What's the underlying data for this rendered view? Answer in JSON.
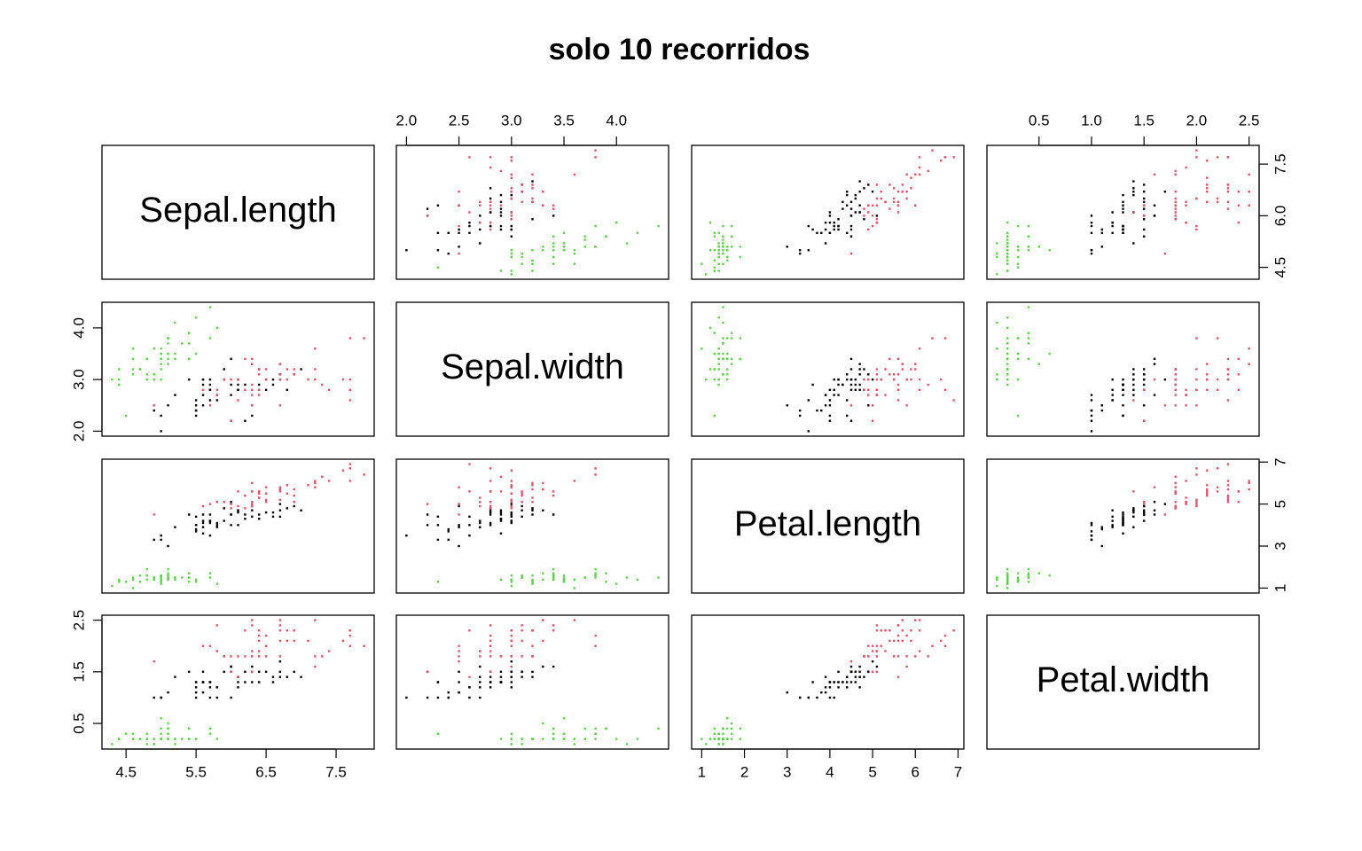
{
  "chart_data": {
    "type": "scatter_matrix",
    "title": "solo 10 recorridos",
    "variables": [
      "Sepal.length",
      "Sepal.width",
      "Petal.length",
      "Petal.width"
    ],
    "lims": [
      [
        4.156,
        8.044
      ],
      [
        1.904,
        4.496
      ],
      [
        0.764,
        7.136
      ],
      [
        0.004,
        2.596
      ]
    ],
    "axes": [
      {
        "side": "top",
        "variable": 1,
        "ticks": [
          {
            "value": 2,
            "label": "2.0"
          },
          2.5,
          {
            "value": 3,
            "label": "3.0"
          },
          3.5,
          {
            "value": 4,
            "label": "4.0"
          }
        ]
      },
      {
        "side": "top",
        "variable": 3,
        "ticks": [
          0.5,
          {
            "value": 1,
            "label": "1.0"
          },
          1.5,
          {
            "value": 2,
            "label": "2.0"
          },
          2.5
        ]
      },
      {
        "side": "right",
        "variable": 0,
        "ticks": [
          4.5,
          {
            "value": 6,
            "label": "6.0"
          },
          7.5
        ]
      },
      {
        "side": "right",
        "variable": 2,
        "ticks": [
          1,
          3,
          5,
          7
        ]
      },
      {
        "side": "left",
        "variable": 1,
        "ticks": [
          {
            "value": 2,
            "label": "2.0"
          },
          {
            "value": 3,
            "label": "3.0"
          },
          {
            "value": 4,
            "label": "4.0"
          }
        ]
      },
      {
        "side": "left",
        "variable": 3,
        "ticks": [
          0.5,
          1.5,
          2.5
        ]
      },
      {
        "side": "bottom",
        "variable": 0,
        "ticks": [
          4.5,
          5.5,
          6.5,
          7.5
        ]
      },
      {
        "side": "bottom",
        "variable": 2,
        "ticks": [
          1,
          2,
          3,
          4,
          5,
          6,
          7
        ]
      }
    ],
    "series": [
      {
        "color": "#000000",
        "columns": [
          [
            7.0,
            6.4,
            6.9,
            5.5,
            6.5,
            5.7,
            6.3,
            4.9,
            6.6,
            5.2,
            5.0,
            5.9,
            6.0,
            6.1,
            5.6,
            6.7,
            5.6,
            5.8,
            6.2,
            5.6,
            5.9,
            6.1,
            6.3,
            6.1,
            6.4,
            6.6,
            6.8,
            6.7,
            6.0,
            5.7,
            5.5,
            5.5,
            5.8,
            6.0,
            5.4,
            6.0,
            6.7,
            6.3,
            5.6,
            5.5,
            5.5,
            6.1,
            5.8,
            5.0,
            5.6,
            5.7,
            5.7,
            6.2,
            5.1,
            5.7
          ],
          [
            3.2,
            3.2,
            3.1,
            2.3,
            2.8,
            2.8,
            3.3,
            2.4,
            2.9,
            2.7,
            2.0,
            3.0,
            2.2,
            2.9,
            2.9,
            3.1,
            3.0,
            2.7,
            2.2,
            2.5,
            3.2,
            2.8,
            2.5,
            2.8,
            2.9,
            3.0,
            2.8,
            3.0,
            2.9,
            2.6,
            2.4,
            2.4,
            2.7,
            2.7,
            3.0,
            3.4,
            3.1,
            2.3,
            3.0,
            2.5,
            2.6,
            3.0,
            2.6,
            2.3,
            2.7,
            3.0,
            2.9,
            2.9,
            2.5,
            2.8
          ],
          [
            4.7,
            4.5,
            4.9,
            4.0,
            4.6,
            4.5,
            4.7,
            3.3,
            4.6,
            3.9,
            3.5,
            4.2,
            4.0,
            4.7,
            3.6,
            4.4,
            4.5,
            4.1,
            4.5,
            3.9,
            4.8,
            4.0,
            4.9,
            4.7,
            4.3,
            4.4,
            4.8,
            5.0,
            4.5,
            3.5,
            3.8,
            3.7,
            3.9,
            5.1,
            4.5,
            4.5,
            4.7,
            4.4,
            4.1,
            4.0,
            4.4,
            4.6,
            4.0,
            3.3,
            4.2,
            4.2,
            4.2,
            4.3,
            3.0,
            4.1
          ],
          [
            1.4,
            1.5,
            1.5,
            1.3,
            1.5,
            1.3,
            1.6,
            1.0,
            1.3,
            1.4,
            1.0,
            1.5,
            1.0,
            1.4,
            1.3,
            1.4,
            1.5,
            1.0,
            1.5,
            1.1,
            1.8,
            1.3,
            1.5,
            1.2,
            1.3,
            1.4,
            1.4,
            1.7,
            1.5,
            1.0,
            1.1,
            1.0,
            1.2,
            1.6,
            1.5,
            1.6,
            1.5,
            1.3,
            1.3,
            1.3,
            1.2,
            1.4,
            1.2,
            1.0,
            1.3,
            1.2,
            1.3,
            1.3,
            1.1,
            1.3
          ]
        ]
      },
      {
        "color": "#DF536B",
        "columns": [
          [
            6.3,
            5.8,
            7.1,
            6.3,
            6.5,
            7.6,
            4.9,
            7.3,
            6.7,
            7.2,
            6.5,
            6.4,
            6.8,
            5.7,
            5.8,
            6.4,
            6.5,
            7.7,
            7.7,
            6.0,
            6.9,
            5.6,
            7.7,
            6.3,
            6.7,
            7.2,
            6.2,
            6.1,
            6.4,
            7.2,
            7.4,
            7.9,
            6.4,
            6.3,
            6.1,
            7.7,
            6.3,
            6.4,
            6.0,
            6.9,
            6.7,
            6.9,
            5.8,
            6.8,
            6.7,
            6.7,
            6.3,
            6.5,
            6.2,
            5.9
          ],
          [
            3.3,
            2.7,
            3.0,
            2.9,
            3.0,
            3.0,
            2.5,
            2.9,
            2.5,
            3.6,
            3.2,
            2.7,
            3.0,
            2.5,
            2.8,
            3.2,
            3.0,
            3.8,
            2.6,
            2.2,
            3.2,
            2.8,
            2.8,
            2.7,
            3.3,
            3.2,
            2.8,
            3.0,
            2.8,
            3.0,
            2.8,
            3.8,
            2.8,
            2.8,
            2.6,
            3.0,
            3.4,
            3.1,
            3.0,
            3.1,
            3.1,
            3.1,
            2.7,
            3.2,
            3.3,
            3.0,
            2.5,
            3.0,
            3.4,
            3.0
          ],
          [
            6.0,
            5.1,
            5.9,
            5.6,
            5.8,
            6.6,
            4.5,
            6.3,
            5.8,
            6.1,
            5.1,
            5.3,
            5.5,
            5.0,
            5.1,
            5.3,
            5.5,
            6.7,
            6.9,
            5.0,
            5.7,
            4.9,
            6.7,
            4.9,
            5.7,
            6.0,
            4.8,
            4.9,
            5.6,
            5.8,
            6.1,
            6.4,
            5.6,
            5.1,
            5.6,
            6.1,
            5.6,
            5.5,
            4.8,
            5.4,
            5.6,
            5.1,
            5.1,
            5.9,
            5.7,
            5.2,
            5.0,
            5.2,
            5.4,
            5.1
          ],
          [
            2.5,
            1.9,
            2.1,
            1.8,
            2.2,
            2.1,
            1.7,
            1.8,
            1.8,
            2.5,
            2.0,
            1.9,
            2.1,
            2.0,
            2.4,
            2.3,
            1.8,
            2.2,
            2.3,
            1.5,
            2.3,
            2.0,
            2.0,
            1.8,
            2.1,
            1.8,
            1.8,
            1.8,
            2.1,
            1.6,
            1.9,
            2.0,
            2.2,
            1.5,
            1.4,
            2.3,
            2.4,
            1.8,
            1.8,
            2.1,
            2.4,
            2.3,
            1.9,
            2.3,
            2.5,
            2.3,
            1.9,
            2.0,
            2.3,
            1.8
          ]
        ]
      },
      {
        "color": "#61D04F",
        "columns": [
          [
            5.1,
            4.9,
            4.7,
            4.6,
            5.0,
            5.4,
            4.6,
            5.0,
            4.4,
            4.9,
            5.4,
            4.8,
            4.8,
            4.3,
            5.8,
            5.7,
            5.4,
            5.1,
            5.7,
            5.1,
            5.4,
            5.1,
            4.6,
            5.1,
            4.8,
            5.0,
            5.0,
            5.2,
            5.2,
            4.7,
            4.8,
            5.4,
            5.2,
            5.5,
            4.9,
            5.0,
            5.5,
            4.9,
            4.4,
            5.1,
            5.0,
            4.5,
            4.4,
            5.0,
            5.1,
            4.8,
            5.1,
            4.6,
            5.3,
            5.0
          ],
          [
            3.5,
            3.0,
            3.2,
            3.1,
            3.6,
            3.9,
            3.4,
            3.4,
            2.9,
            3.1,
            3.7,
            3.4,
            3.0,
            3.0,
            4.0,
            4.4,
            3.9,
            3.5,
            3.8,
            3.8,
            3.4,
            3.7,
            3.6,
            3.3,
            3.4,
            3.0,
            3.4,
            3.5,
            3.4,
            3.2,
            3.1,
            3.4,
            4.1,
            4.2,
            3.1,
            3.2,
            3.5,
            3.6,
            3.0,
            3.4,
            3.5,
            2.3,
            3.2,
            3.5,
            3.8,
            3.0,
            3.8,
            3.2,
            3.7,
            3.3
          ],
          [
            1.4,
            1.4,
            1.3,
            1.5,
            1.4,
            1.7,
            1.4,
            1.5,
            1.4,
            1.5,
            1.5,
            1.6,
            1.4,
            1.1,
            1.2,
            1.5,
            1.3,
            1.4,
            1.7,
            1.5,
            1.7,
            1.5,
            1.0,
            1.7,
            1.9,
            1.6,
            1.6,
            1.5,
            1.4,
            1.6,
            1.6,
            1.5,
            1.5,
            1.4,
            1.5,
            1.2,
            1.3,
            1.4,
            1.3,
            1.5,
            1.3,
            1.3,
            1.3,
            1.6,
            1.9,
            1.4,
            1.6,
            1.4,
            1.5,
            1.4
          ],
          [
            0.2,
            0.2,
            0.2,
            0.2,
            0.2,
            0.4,
            0.3,
            0.2,
            0.2,
            0.1,
            0.2,
            0.2,
            0.1,
            0.1,
            0.2,
            0.4,
            0.4,
            0.3,
            0.3,
            0.3,
            0.2,
            0.4,
            0.2,
            0.5,
            0.2,
            0.2,
            0.4,
            0.2,
            0.2,
            0.2,
            0.2,
            0.4,
            0.1,
            0.2,
            0.2,
            0.2,
            0.2,
            0.1,
            0.2,
            0.2,
            0.3,
            0.3,
            0.2,
            0.6,
            0.4,
            0.3,
            0.2,
            0.2,
            0.2,
            0.2
          ]
        ]
      }
    ]
  }
}
